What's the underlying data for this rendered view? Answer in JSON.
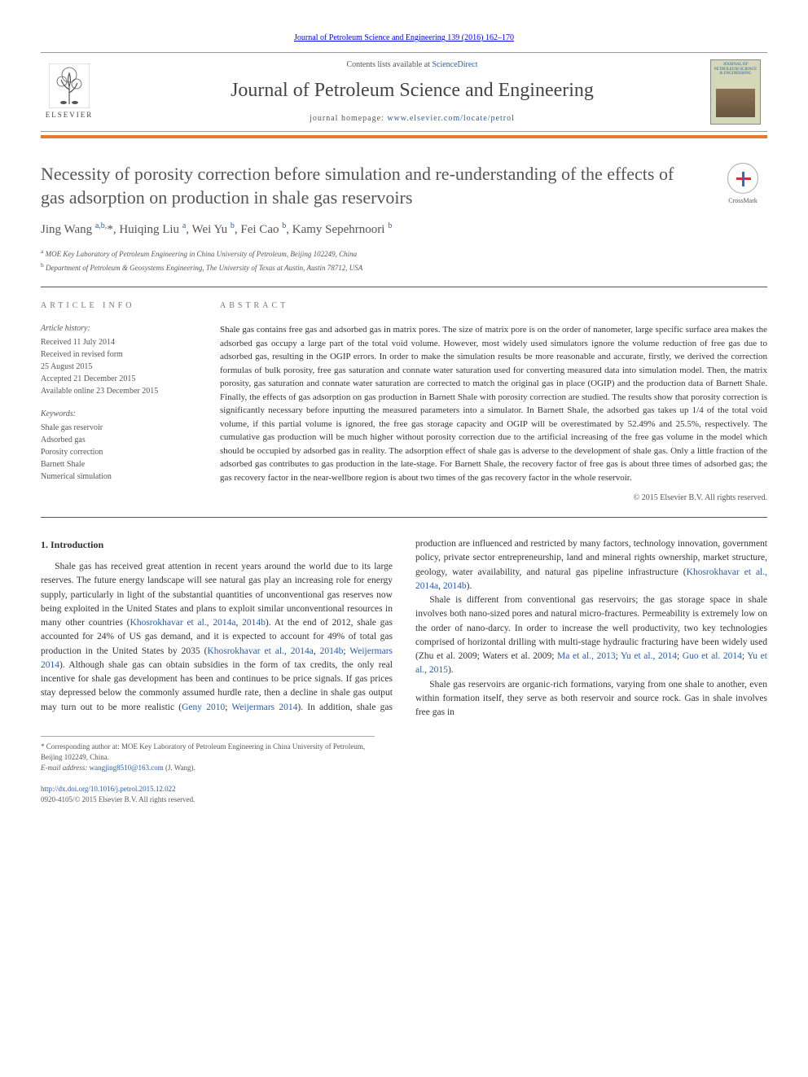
{
  "citation": "Journal of Petroleum Science and Engineering 139 (2016) 162–170",
  "masthead": {
    "contents_prefix": "Contents lists available at ",
    "contents_link": "ScienceDirect",
    "journal_name": "Journal of Petroleum Science and Engineering",
    "homepage_prefix": "journal homepage: ",
    "homepage_url": "www.elsevier.com/locate/petrol",
    "publisher_label": "ELSEVIER",
    "cover_text": "JOURNAL OF PETROLEUM SCIENCE & ENGINEERING"
  },
  "crossmark_label": "CrossMark",
  "title": "Necessity of porosity correction before simulation and re-understanding of the effects of gas adsorption on production in shale gas reservoirs",
  "authors_html": "Jing Wang <sup>a,b,</sup>*, Huiqing Liu <sup>a</sup>, Wei Yu <sup>b</sup>, Fei Cao <sup>b</sup>, Kamy Sepehrnoori <sup>b</sup>",
  "affiliations": [
    {
      "marker": "a",
      "text": "MOE Key Laboratory of Petroleum Engineering in China University of Petroleum, Beijing 102249, China"
    },
    {
      "marker": "b",
      "text": "Department of Petroleum & Geosystems Engineering, The University of Texas at Austin, Austin 78712, USA"
    }
  ],
  "article_info": {
    "label": "ARTICLE INFO",
    "history_label": "Article history:",
    "history": [
      "Received 11 July 2014",
      "Received in revised form",
      "25 August 2015",
      "Accepted 21 December 2015",
      "Available online 23 December 2015"
    ],
    "keywords_label": "Keywords:",
    "keywords": [
      "Shale gas reservoir",
      "Adsorbed gas",
      "Porosity correction",
      "Barnett Shale",
      "Numerical simulation"
    ]
  },
  "abstract": {
    "label": "ABSTRACT",
    "text": "Shale gas contains free gas and adsorbed gas in matrix pores. The size of matrix pore is on the order of nanometer, large specific surface area makes the adsorbed gas occupy a large part of the total void volume. However, most widely used simulators ignore the volume reduction of free gas due to adsorbed gas, resulting in the OGIP errors. In order to make the simulation results be more reasonable and accurate, firstly, we derived the correction formulas of bulk porosity, free gas saturation and connate water saturation used for converting measured data into simulation model. Then, the matrix porosity, gas saturation and connate water saturation are corrected to match the original gas in place (OGIP) and the production data of Barnett Shale. Finally, the effects of gas adsorption on gas production in Barnett Shale with porosity correction are studied. The results show that porosity correction is significantly necessary before inputting the measured parameters into a simulator. In Barnett Shale, the adsorbed gas takes up 1/4 of the total void volume, if this partial volume is ignored, the free gas storage capacity and OGIP will be overestimated by 52.49% and 25.5%, respectively. The cumulative gas production will be much higher without porosity correction due to the artificial increasing of the free gas volume in the model which should be occupied by adsorbed gas in reality. The adsorption effect of shale gas is adverse to the development of shale gas. Only a little fraction of the adsorbed gas contributes to gas production in the late-stage. For Barnett Shale, the recovery factor of free gas is about three times of adsorbed gas; the gas recovery factor in the near-wellbore region is about two times of the gas recovery factor in the whole reservoir.",
    "copyright": "© 2015 Elsevier B.V. All rights reserved."
  },
  "intro": {
    "heading": "1.  Introduction",
    "p1_a": "Shale gas has received great attention in recent years around the world due to its large reserves. The future energy landscape will see natural gas play an increasing role for energy supply, particularly in light of the substantial quantities of unconventional gas reserves now being exploited in the United States and plans to exploit similar unconventional resources in many other countries (",
    "p1_l1": "Khosrokhavar et al., 2014a",
    "p1_s1": ", ",
    "p1_l2": "2014b",
    "p1_b": "). At the end of 2012, shale gas accounted for 24% of US gas demand, and it is expected to account for 49% of total gas production in the United States by 2035 (",
    "p1_l3": "Khosrokhavar et al., 2014a",
    "p1_s2": ", ",
    "p1_l4": "2014b",
    "p1_s3": "; ",
    "p1_l5": "Weijermars 2014",
    "p1_c": "). Although shale gas can obtain subsidies in the form of tax credits, the only real incentive for shale gas development has been and continues ",
    "p1_d": "to be price signals. If gas prices stay depressed below the commonly assumed hurdle rate, then a decline in shale gas output may turn out to be more realistic (",
    "p1_l6": "Geny 2010",
    "p1_s4": "; ",
    "p1_l7": "Weijermars 2014",
    "p1_e": "). In addition, shale gas production are influenced and restricted by many factors, technology innovation, government policy, private sector entrepreneurship, land and mineral rights ownership, market structure, geology, water availability, and natural gas pipeline infrastructure (",
    "p1_l8": "Khosrokhavar et al., 2014a",
    "p1_s5": ", ",
    "p1_l9": "2014b",
    "p1_f": ").",
    "p2_a": "Shale is different from conventional gas reservoirs; the gas storage space in shale involves both nano-sized pores and natural micro-fractures. Permeability is extremely low on the order of nano-darcy. In order to increase the well productivity, two key technologies comprised of horizontal drilling with multi-stage hydraulic fracturing have been widely used (Zhu et al. 2009; Waters et al. 2009; ",
    "p2_l1": "Ma et al., 2013",
    "p2_s1": "; ",
    "p2_l2": "Yu et al., 2014",
    "p2_s2": "; ",
    "p2_l3": "Guo et al. 2014",
    "p2_s3": "; ",
    "p2_l4": "Yu et al., 2015",
    "p2_b": ").",
    "p3": "Shale gas reservoirs are organic-rich formations, varying from one shale to another, even within formation itself, they serve as both reservoir and source rock. Gas in shale involves free gas in"
  },
  "footnotes": {
    "corr": "* Corresponding author at: MOE Key Laboratory of Petroleum Engineering in China University of Petroleum, Beijing 102249, China.",
    "email_label": "E-mail address: ",
    "email": "wangjing8510@163.com",
    "email_suffix": " (J. Wang)."
  },
  "footer": {
    "doi": "http://dx.doi.org/10.1016/j.petrol.2015.12.022",
    "issn_copyright": "0920-4105/© 2015 Elsevier B.V. All rights reserved."
  },
  "colors": {
    "link": "#2a5caa",
    "orange": "#e87a2e",
    "text": "#333333",
    "muted": "#555555"
  }
}
